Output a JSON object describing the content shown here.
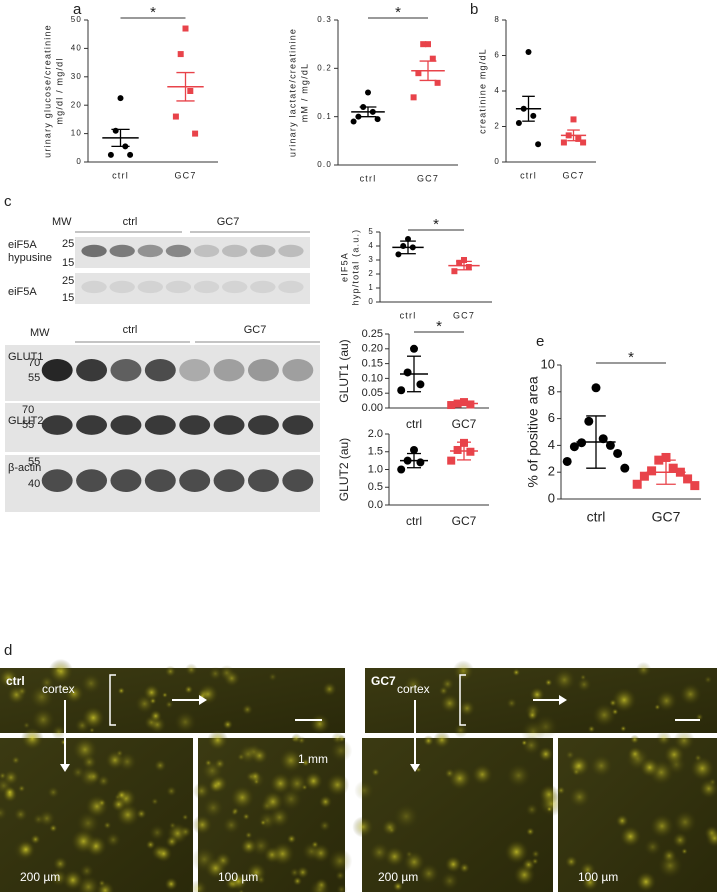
{
  "panel_labels": [
    "a",
    "b",
    "c",
    "d",
    "e"
  ],
  "chart_data": [
    {
      "type": "dot",
      "ylabel": [
        "urinary glucose/creatinine",
        "mg/dl / mg/dl"
      ],
      "ylim": [
        0,
        50
      ],
      "yticks": [
        0,
        10,
        20,
        30,
        40,
        50
      ],
      "annotation": "*",
      "groups": [
        {
          "label": "ctrl",
          "color": "#000000",
          "marker": "circle",
          "values": [
            22.5,
            11,
            5.5,
            2.5,
            2.5
          ],
          "mean": 8.5,
          "error": 3
        },
        {
          "label": "GC7",
          "color": "#e8434a",
          "marker": "square",
          "values": [
            47,
            38,
            25,
            16,
            10
          ],
          "mean": 26.5,
          "error": 5
        }
      ]
    },
    {
      "type": "dot",
      "ylabel": [
        "urinary lactate/creatinine",
        "mM / mg/dL"
      ],
      "ylim": [
        0,
        0.3
      ],
      "yticks": [
        {
          "value": 0,
          "label": "0.0"
        },
        0.1,
        0.2,
        0.3
      ],
      "annotation": "*",
      "groups": [
        {
          "label": "ctrl",
          "color": "#000000",
          "marker": "circle",
          "values": [
            0.15,
            0.12,
            0.11,
            0.1,
            0.095,
            0.09
          ],
          "mean": 0.11,
          "error": 0.01
        },
        {
          "label": "GC7",
          "color": "#e8434a",
          "marker": "square",
          "values": [
            0.25,
            0.25,
            0.22,
            0.19,
            0.17,
            0.14
          ],
          "mean": 0.195,
          "error": 0.02
        }
      ]
    },
    {
      "type": "dot",
      "ylabel": [
        "creatinine mg/dL"
      ],
      "ylim": [
        0,
        8
      ],
      "yticks": [
        0,
        2,
        4,
        6,
        8
      ],
      "groups": [
        {
          "label": "ctrl",
          "color": "#000000",
          "marker": "circle",
          "values": [
            6.2,
            3,
            2.6,
            2.2,
            1
          ],
          "mean": 3,
          "error": 0.7
        },
        {
          "label": "GC7",
          "color": "#e8434a",
          "marker": "square",
          "values": [
            2.4,
            1.5,
            1.3,
            1.1,
            1.1
          ],
          "mean": 1.5,
          "error": 0.3
        }
      ]
    },
    {
      "type": "dot",
      "ylabel": [
        "eIF5A",
        "hyp/total (a.u.)"
      ],
      "ylim": [
        0,
        5
      ],
      "yticks": [
        0,
        1,
        2,
        3,
        4,
        5
      ],
      "annotation": "*",
      "groups": [
        {
          "label": "ctrl",
          "color": "#000000",
          "marker": "circle",
          "values": [
            4.5,
            4.0,
            3.9,
            3.4
          ],
          "mean": 3.9,
          "error": 0.45
        },
        {
          "label": "GC7",
          "color": "#e8434a",
          "marker": "square",
          "values": [
            3.0,
            2.8,
            2.5,
            2.2
          ],
          "mean": 2.6,
          "error": 0.3
        }
      ]
    },
    {
      "type": "dot",
      "ylabel": [
        "GLUT1 (au)"
      ],
      "ylim": [
        0,
        0.25
      ],
      "yticks": [
        {
          "value": 0,
          "label": "0.00"
        },
        {
          "value": 0.05,
          "label": "0.05"
        },
        {
          "value": 0.1,
          "label": "0.10"
        },
        {
          "value": 0.15,
          "label": "0.15"
        },
        {
          "value": 0.2,
          "label": "0.20"
        },
        {
          "value": 0.25,
          "label": "0.25"
        }
      ],
      "annotation": "*",
      "groups": [
        {
          "label": "ctrl",
          "color": "#000000",
          "marker": "circle",
          "values": [
            0.2,
            0.12,
            0.08,
            0.06
          ],
          "mean": 0.115,
          "error": 0.06
        },
        {
          "label": "GC7",
          "color": "#e8434a",
          "marker": "square",
          "values": [
            0.02,
            0.015,
            0.012,
            0.01
          ],
          "mean": 0.015,
          "error": 0.005
        }
      ]
    },
    {
      "type": "dot",
      "ylabel": [
        "GLUT2 (au)"
      ],
      "ylim": [
        0,
        2
      ],
      "yticks": [
        {
          "value": 0,
          "label": "0.0"
        },
        {
          "value": 0.5,
          "label": "0.5"
        },
        {
          "value": 1,
          "label": "1.0"
        },
        {
          "value": 1.5,
          "label": "1.5"
        },
        {
          "value": 2,
          "label": "2.0"
        }
      ],
      "groups": [
        {
          "label": "ctrl",
          "color": "#000000",
          "marker": "circle",
          "values": [
            1.55,
            1.25,
            1.2,
            1.0
          ],
          "mean": 1.25,
          "error": 0.2
        },
        {
          "label": "GC7",
          "color": "#e8434a",
          "marker": "square",
          "values": [
            1.75,
            1.55,
            1.5,
            1.25
          ],
          "mean": 1.52,
          "error": 0.25
        }
      ]
    },
    {
      "type": "dot",
      "ylabel": [
        "% of positive area"
      ],
      "ylim": [
        0,
        10
      ],
      "yticks": [
        0,
        2,
        4,
        6,
        8,
        10
      ],
      "annotation": "*",
      "groups": [
        {
          "label": "ctrl",
          "color": "#000000",
          "marker": "circle",
          "values": [
            8.3,
            5.8,
            4.5,
            4.2,
            4,
            3.9,
            3.4,
            2.8,
            2.3
          ],
          "mean": 4.25,
          "error": 1.95
        },
        {
          "label": "GC7",
          "color": "#e8434a",
          "marker": "square",
          "values": [
            3.1,
            2.9,
            2.3,
            2.1,
            2,
            1.7,
            1.5,
            1.1,
            1.0
          ],
          "mean": 2.0,
          "error": 0.9
        }
      ]
    }
  ],
  "blots": [
    {
      "mw_label": "MW",
      "groups": [
        "ctrl",
        "GC7"
      ],
      "rows": [
        {
          "label": [
            "eiF5A",
            "hypusine"
          ],
          "mw": [
            "25",
            "15"
          ]
        },
        {
          "label": [
            "eiF5A"
          ],
          "mw": [
            "25",
            "15"
          ]
        }
      ]
    },
    {
      "mw_label": "MW",
      "groups": [
        "ctrl",
        "GC7"
      ],
      "rows": [
        {
          "label": [
            "GLUT1"
          ],
          "mw": [
            "70",
            "55"
          ]
        },
        {
          "label": [
            "GLUT2"
          ],
          "mw": [
            "70",
            "55"
          ]
        },
        {
          "label": [
            "β-actin"
          ],
          "mw": [
            "55",
            "40"
          ]
        }
      ]
    }
  ],
  "micrographs": [
    {
      "label": "ctrl",
      "region": "cortex",
      "scales": [
        "200 µm",
        "100 µm"
      ],
      "bar_label": "1 mm"
    },
    {
      "label": "GC7",
      "region": "cortex",
      "scales": [
        "200 µm",
        "100 µm"
      ]
    }
  ]
}
